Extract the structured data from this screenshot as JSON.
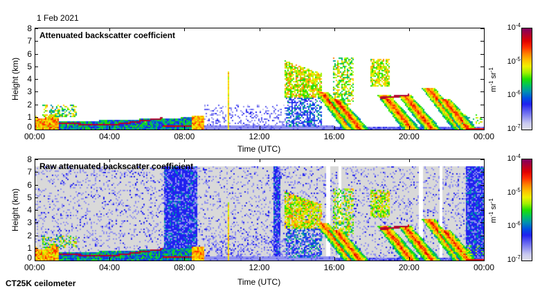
{
  "header": {
    "date": "1 Feb 2021"
  },
  "footer": {
    "instrument": "CT25K ceilometer"
  },
  "colors": {
    "colormap": [
      "#e0e0ea",
      "#c8c8f0",
      "#9090f0",
      "#5a5af0",
      "#2020f0",
      "#0050e0",
      "#0090b0",
      "#00c060",
      "#20e000",
      "#a0f000",
      "#f0f000",
      "#ffc000",
      "#ff8000",
      "#ff3000",
      "#e00000",
      "#b00030",
      "#800060"
    ],
    "no_data": "#d9d9d9",
    "frame": "#000000"
  },
  "chart_data": [
    {
      "type": "heatmap",
      "title": "Attenuated backscatter coefficient",
      "xlabel": "Time (UTC)",
      "ylabel": "Height (km)",
      "x_range_hours": [
        0,
        24
      ],
      "ylim": [
        0,
        8
      ],
      "xticks": [
        "00:00",
        "04:00",
        "08:00",
        "12:00",
        "16:00",
        "20:00",
        "00:00"
      ],
      "yticks": [
        "0",
        "1",
        "2",
        "3",
        "4",
        "5",
        "6",
        "7",
        "8"
      ],
      "colorbar": {
        "label": "m-1 sr-1",
        "unit_parts": [
          "m",
          "-1",
          " sr",
          "-1"
        ],
        "scale": "log",
        "range": [
          1e-07,
          0.0001
        ],
        "ticks": [
          {
            "base": "10",
            "exp": "-4"
          },
          {
            "base": "10",
            "exp": "-5"
          },
          {
            "base": "10",
            "exp": "-6"
          },
          {
            "base": "10",
            "exp": "-7"
          }
        ]
      },
      "features": [
        {
          "name": "boundary layer cloud",
          "time_hours": [
            1.0,
            8.5
          ],
          "height_km": [
            0.2,
            1.0
          ],
          "value": 5e-05
        },
        {
          "name": "low cloud / fog",
          "time_hours": [
            0,
            1.2
          ],
          "height_km": [
            0,
            1.2
          ],
          "value": 8e-06
        },
        {
          "name": "mid cloud",
          "time_hours": [
            13.3,
            15.3
          ],
          "height_km": [
            2.5,
            6.2
          ],
          "value": 8e-06
        },
        {
          "name": "precipitation streaks",
          "time_hours": [
            15.3,
            24
          ],
          "height_km": [
            0,
            3.0
          ],
          "value": 1e-05
        },
        {
          "name": "cloud base",
          "time_hours": [
            18.5,
            20.0
          ],
          "height_km": [
            2.5,
            3.0
          ],
          "value": 5e-05
        },
        {
          "name": "surface layer",
          "time_hours": [
            23,
            24
          ],
          "height_km": [
            0,
            0.2
          ],
          "value": 5e-05
        }
      ],
      "noise_filtered": true
    },
    {
      "type": "heatmap",
      "title": "Raw attenuated backscatter coefficient",
      "xlabel": "Time (UTC)",
      "ylabel": "Height (km)",
      "x_range_hours": [
        0,
        24
      ],
      "ylim": [
        0,
        8
      ],
      "xticks": [
        "00:00",
        "04:00",
        "08:00",
        "12:00",
        "16:00",
        "20:00",
        "00:00"
      ],
      "yticks": [
        "0",
        "1",
        "2",
        "3",
        "4",
        "5",
        "6",
        "7",
        "8"
      ],
      "colorbar": {
        "label": "m-1 sr-1",
        "unit_parts": [
          "m",
          "-1",
          " sr",
          "-1"
        ],
        "scale": "log",
        "range": [
          1e-07,
          0.0001
        ],
        "ticks": [
          {
            "base": "10",
            "exp": "-4"
          },
          {
            "base": "10",
            "exp": "-5"
          },
          {
            "base": "10",
            "exp": "-6"
          },
          {
            "base": "10",
            "exp": "-7"
          }
        ]
      },
      "noise_filtered": false
    }
  ]
}
